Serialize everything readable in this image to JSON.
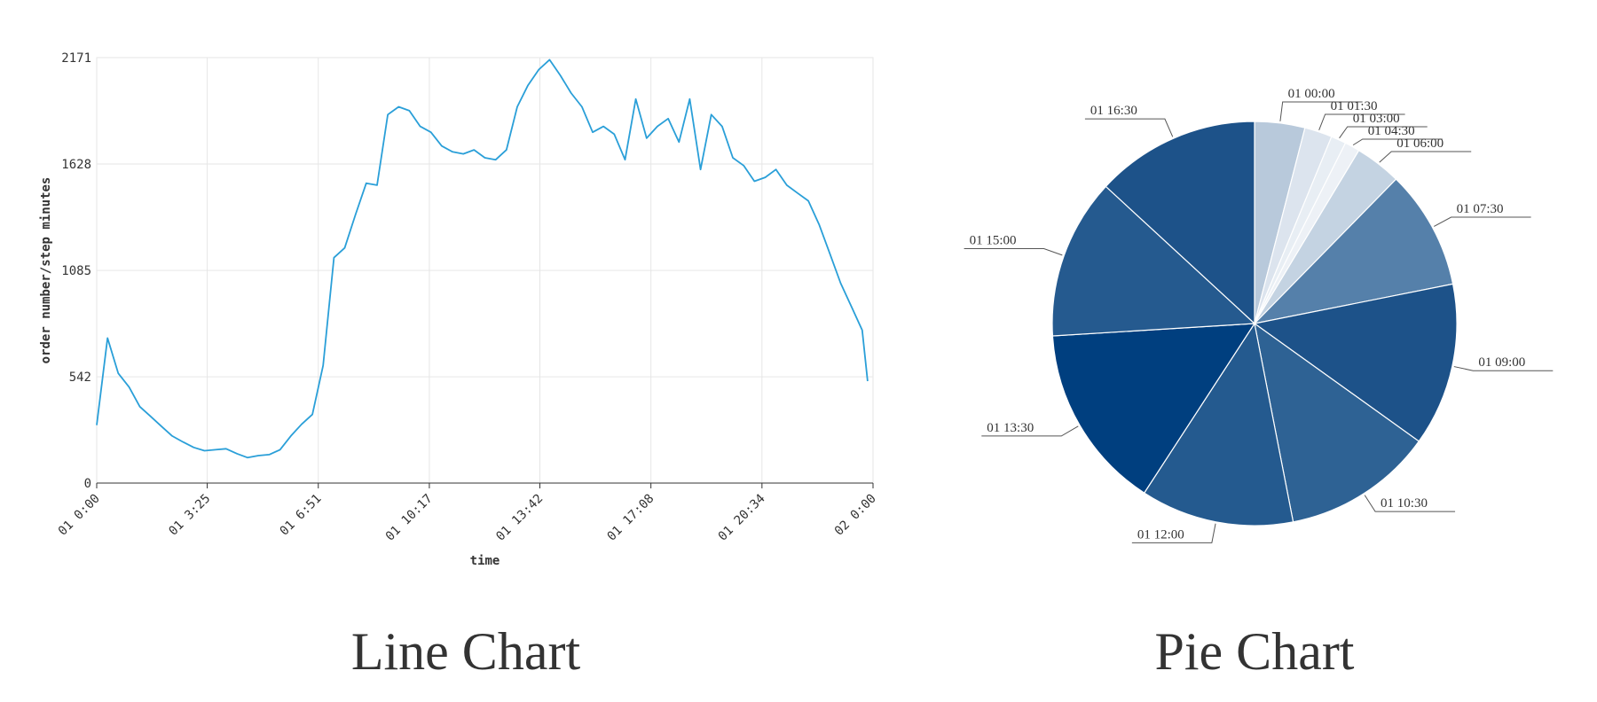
{
  "chart_data": [
    {
      "type": "line",
      "title": "Line Chart",
      "x_label": "time",
      "y_label": "order number/step minutes",
      "x": [
        0,
        20,
        40,
        60,
        80,
        100,
        120,
        140,
        160,
        180,
        200,
        220,
        240,
        260,
        280,
        300,
        320,
        340,
        360,
        380,
        400,
        420,
        440,
        460,
        480,
        500,
        520,
        540,
        560,
        580,
        600,
        620,
        640,
        660,
        680,
        700,
        720,
        740,
        760,
        780,
        800,
        820,
        840,
        860,
        880,
        900,
        920,
        940,
        960,
        980,
        1000,
        1020,
        1040,
        1060,
        1080,
        1100,
        1120,
        1140,
        1160,
        1180,
        1200,
        1220,
        1240,
        1260,
        1280,
        1300,
        1320,
        1340,
        1360,
        1380,
        1400,
        1420,
        1430
      ],
      "series": [
        {
          "name": "order number",
          "color": "#2a9fd8",
          "values": [
            296,
            740,
            560,
            490,
            390,
            340,
            290,
            240,
            210,
            182,
            165,
            170,
            175,
            150,
            130,
            140,
            145,
            170,
            240,
            300,
            350,
            600,
            1150,
            1200,
            1370,
            1530,
            1520,
            1880,
            1920,
            1900,
            1820,
            1790,
            1720,
            1690,
            1680,
            1700,
            1660,
            1650,
            1700,
            1920,
            2030,
            2110,
            2160,
            2080,
            1990,
            1920,
            1790,
            1820,
            1780,
            1650,
            1960,
            1760,
            1820,
            1860,
            1740,
            1960,
            1600,
            1880,
            1820,
            1660,
            1620,
            1540,
            1560,
            1600,
            1520,
            1480,
            1440,
            1320,
            1170,
            1020,
            900,
            780,
            520
          ]
        }
      ],
      "xlim": [
        0,
        1440
      ],
      "xticks": [
        {
          "value": 0,
          "label": "01 0:00"
        },
        {
          "value": 205,
          "label": "01 3:25"
        },
        {
          "value": 411,
          "label": "01 6:51"
        },
        {
          "value": 617,
          "label": "01 10:17"
        },
        {
          "value": 822,
          "label": "01 13:42"
        },
        {
          "value": 1028,
          "label": "01 17:08"
        },
        {
          "value": 1234,
          "label": "01 20:34"
        },
        {
          "value": 1440,
          "label": "02 0:00"
        }
      ],
      "ylim": [
        0,
        2171
      ],
      "yticks": [
        0,
        542,
        1085,
        1628,
        2171
      ],
      "grid": true
    },
    {
      "type": "pie",
      "title": "Pie Chart",
      "categories": [
        "01 00:00",
        "01 01:30",
        "01 03:00",
        "01 04:30",
        "01 06:00",
        "01 07:30",
        "01 09:00",
        "01 10:30",
        "01 12:00",
        "01 13:30",
        "01 15:00",
        "01 16:30"
      ],
      "values": [
        4,
        2.2,
        1.2,
        1.2,
        3.7,
        9.5,
        13,
        12,
        12.2,
        14.8,
        12.8,
        13.1
      ],
      "colors": [
        "#b8c9db",
        "#dce4ee",
        "#e8eef4",
        "#edf1f6",
        "#c4d3e2",
        "#5580aa",
        "#1d5289",
        "#2e6294",
        "#245a8f",
        "#003f7f",
        "#255a8f",
        "#1d5289"
      ]
    }
  ]
}
